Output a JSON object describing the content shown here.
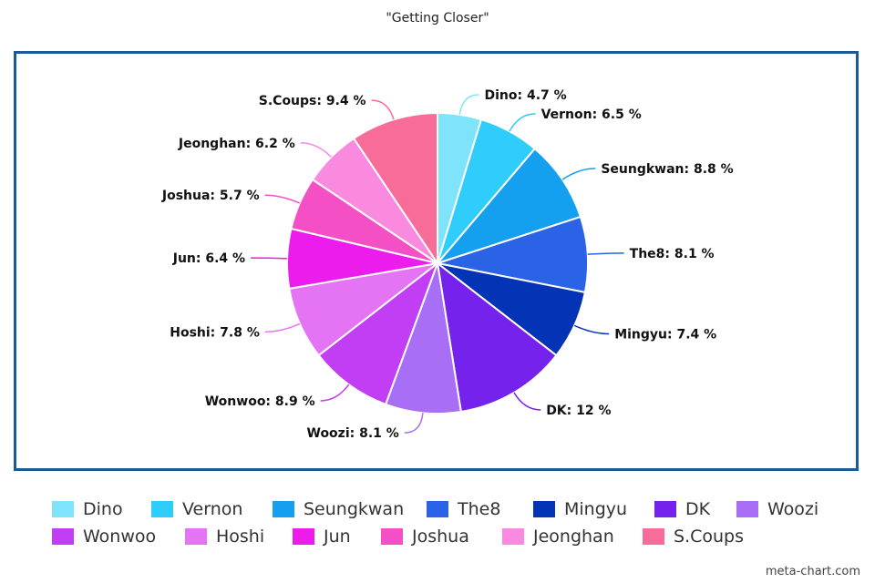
{
  "chart_data": {
    "type": "pie",
    "title": "\"Getting Closer\"",
    "label_suffix": " %",
    "slices": [
      {
        "name": "Dino",
        "value": 4.7,
        "label": "Dino: 4.7 %",
        "color": "#7ee3fb"
      },
      {
        "name": "Vernon",
        "value": 6.5,
        "label": "Vernon: 6.5 %",
        "color": "#2ecdfb"
      },
      {
        "name": "Seungkwan",
        "value": 8.8,
        "label": "Seungkwan: 8.8 %",
        "color": "#14a0ef"
      },
      {
        "name": "The8",
        "value": 8.1,
        "label": "The8: 8.1 %",
        "color": "#2a63e6"
      },
      {
        "name": "Mingyu",
        "value": 7.4,
        "label": "Mingyu: 7.4 %",
        "color": "#0434b6"
      },
      {
        "name": "DK",
        "value": 12,
        "label": "DK: 12 %",
        "color": "#7422ec"
      },
      {
        "name": "Woozi",
        "value": 8.1,
        "label": "Woozi: 8.1 %",
        "color": "#a86ef6"
      },
      {
        "name": "Wonwoo",
        "value": 8.9,
        "label": "Wonwoo: 8.9 %",
        "color": "#c23ef5"
      },
      {
        "name": "Hoshi",
        "value": 7.8,
        "label": "Hoshi: 7.8 %",
        "color": "#e574f5"
      },
      {
        "name": "Jun",
        "value": 6.4,
        "label": "Jun: 6.4 %",
        "color": "#ec1cec"
      },
      {
        "name": "Joshua",
        "value": 5.7,
        "label": "Joshua: 5.7 %",
        "color": "#f54fc5"
      },
      {
        "name": "Jeonghan",
        "value": 6.2,
        "label": "Jeonghan: 6.2 %",
        "color": "#f98ae0"
      },
      {
        "name": "S.Coups",
        "value": 9.4,
        "label": "S.Coups: 9.4 %",
        "color": "#f86c99"
      }
    ],
    "legend_position": "bottom"
  },
  "watermark": "meta-chart.com"
}
